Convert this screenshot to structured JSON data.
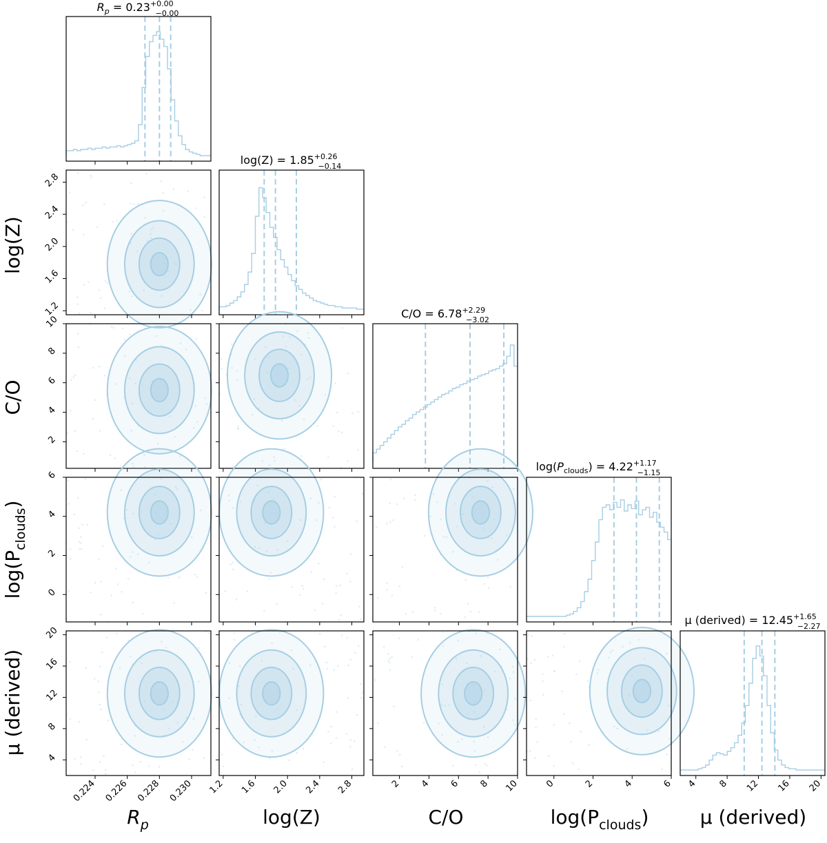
{
  "colors": {
    "primary": "#a6cee3",
    "axes": "#000000"
  },
  "chart_data": {
    "type": "corner",
    "parameters": [
      {
        "key": "Rp",
        "label": "R_p",
        "range": [
          0.2222,
          0.2312
        ],
        "ticks": [
          0.224,
          0.226,
          0.228,
          0.23
        ],
        "tick_labels": [
          "0.224",
          "0.226",
          "0.228",
          "0.230"
        ],
        "median": 0.228,
        "plus": 0.0,
        "minus": 0.0,
        "quantiles": [
          0.2271,
          0.228,
          0.2287
        ],
        "title": {
          "name": "R_p",
          "value": "0.23",
          "plus": "+0.00",
          "minus": "−0.00"
        }
      },
      {
        "key": "logZ",
        "label": "log(Z)",
        "range": [
          1.15,
          2.95
        ],
        "ticks": [
          1.2,
          1.6,
          2.0,
          2.4,
          2.8
        ],
        "tick_labels": [
          "1.2",
          "1.6",
          "2.0",
          "2.4",
          "2.8"
        ],
        "median": 1.85,
        "plus": 0.26,
        "minus": 0.14,
        "quantiles": [
          1.71,
          1.85,
          2.11
        ],
        "title": {
          "name": "log(Z)",
          "value": "1.85",
          "plus": "+0.26",
          "minus": "−0.14"
        }
      },
      {
        "key": "CO",
        "label": "C/O",
        "range": [
          0.2,
          10.0
        ],
        "ticks": [
          2,
          4,
          6,
          8,
          10
        ],
        "tick_labels": [
          "2",
          "4",
          "6",
          "8",
          "10"
        ],
        "median": 6.78,
        "plus": 2.29,
        "minus": 3.02,
        "quantiles": [
          3.76,
          6.78,
          9.07
        ],
        "title": {
          "name": "C/O",
          "value": "6.78",
          "plus": "+2.29",
          "minus": "−3.02"
        }
      },
      {
        "key": "logPclouds",
        "label": "log(P_clouds)",
        "range": [
          -1.4,
          6.0
        ],
        "ticks": [
          0,
          2,
          4,
          6
        ],
        "tick_labels": [
          "0",
          "2",
          "4",
          "6"
        ],
        "median": 4.22,
        "plus": 1.17,
        "minus": 1.15,
        "quantiles": [
          3.07,
          4.22,
          5.39
        ],
        "title": {
          "name": "log(P_clouds)",
          "value": "4.22",
          "plus": "+1.17",
          "minus": "−1.15"
        }
      },
      {
        "key": "mu",
        "label": "μ (derived)",
        "range": [
          2.0,
          20.5
        ],
        "ticks": [
          4,
          8,
          12,
          16,
          20
        ],
        "tick_labels": [
          "4",
          "8",
          "12",
          "16",
          "20"
        ],
        "median": 12.45,
        "plus": 1.65,
        "minus": 2.27,
        "quantiles": [
          10.18,
          12.45,
          14.1
        ],
        "title": {
          "name": "μ (derived)",
          "value": "12.45",
          "plus": "+1.65",
          "minus": "−2.27"
        }
      }
    ],
    "axis_labels": [
      "R",
      "p",
      "log(Z)",
      "C/O",
      "log(P",
      "clouds",
      ")",
      "μ (derived)"
    ],
    "title_text": {
      "eq": " = ",
      "logPcl_prefix": "log(",
      "logPcl_P": "P",
      "logPcl_sub": "clouds",
      "logPcl_suffix": ")",
      "Rp_R": "R",
      "Rp_sub": "p"
    },
    "histograms": {
      "Rp": [
        0.04,
        0.04,
        0.05,
        0.04,
        0.05,
        0.05,
        0.06,
        0.05,
        0.06,
        0.06,
        0.07,
        0.06,
        0.07,
        0.07,
        0.08,
        0.07,
        0.08,
        0.09,
        0.1,
        0.12,
        0.25,
        0.55,
        0.8,
        0.92,
        0.97,
        1.0,
        0.94,
        0.88,
        0.7,
        0.45,
        0.28,
        0.16,
        0.09,
        0.05,
        0.03,
        0.02,
        0.01,
        0.0,
        0.0,
        0.0
      ],
      "logZ": [
        0.02,
        0.02,
        0.03,
        0.05,
        0.07,
        0.1,
        0.14,
        0.2,
        0.3,
        0.45,
        0.75,
        0.98,
        0.9,
        0.78,
        0.66,
        0.58,
        0.48,
        0.4,
        0.34,
        0.28,
        0.23,
        0.19,
        0.16,
        0.13,
        0.11,
        0.09,
        0.07,
        0.06,
        0.05,
        0.04,
        0.03,
        0.03,
        0.02,
        0.02,
        0.01,
        0.01,
        0.01,
        0.01,
        0.0,
        0.0
      ],
      "CO": [
        0.08,
        0.11,
        0.14,
        0.17,
        0.2,
        0.23,
        0.26,
        0.29,
        0.31,
        0.34,
        0.36,
        0.39,
        0.41,
        0.43,
        0.45,
        0.47,
        0.49,
        0.51,
        0.53,
        0.55,
        0.56,
        0.58,
        0.6,
        0.61,
        0.63,
        0.64,
        0.66,
        0.67,
        0.68,
        0.7,
        0.71,
        0.72,
        0.74,
        0.75,
        0.76,
        0.78,
        0.8,
        0.86,
        0.95,
        0.78
      ],
      "logPclouds": [
        0.0,
        0.0,
        0.0,
        0.0,
        0.0,
        0.0,
        0.0,
        0.0,
        0.0,
        0.0,
        0.0,
        0.01,
        0.02,
        0.04,
        0.07,
        0.12,
        0.2,
        0.3,
        0.45,
        0.6,
        0.78,
        0.88,
        0.9,
        0.86,
        0.92,
        0.88,
        0.94,
        0.85,
        0.9,
        0.87,
        0.93,
        0.82,
        0.86,
        0.88,
        0.8,
        0.84,
        0.76,
        0.72,
        0.68,
        0.62
      ],
      "mu": [
        0.0,
        0.0,
        0.0,
        0.0,
        0.0,
        0.01,
        0.02,
        0.04,
        0.08,
        0.12,
        0.14,
        0.13,
        0.12,
        0.15,
        0.18,
        0.22,
        0.28,
        0.38,
        0.52,
        0.7,
        0.9,
        1.0,
        0.92,
        0.76,
        0.52,
        0.3,
        0.16,
        0.08,
        0.04,
        0.02,
        0.01,
        0.01,
        0.0,
        0.0,
        0.0,
        0.0,
        0.0,
        0.0,
        0.0,
        0.0
      ]
    },
    "contour_centers": {
      "Rp-logZ": [
        0.228,
        1.78
      ],
      "Rp-CO": [
        0.228,
        5.5
      ],
      "logZ-CO": [
        1.9,
        6.5
      ],
      "Rp-logPclouds": [
        0.228,
        4.2
      ],
      "logZ-logPclouds": [
        1.8,
        4.2
      ],
      "CO-logPclouds": [
        7.5,
        4.2
      ],
      "Rp-mu": [
        0.228,
        12.5
      ],
      "logZ-mu": [
        1.8,
        12.5
      ],
      "CO-mu": [
        7.0,
        12.5
      ],
      "logPclouds-mu": [
        4.5,
        12.8
      ]
    }
  }
}
